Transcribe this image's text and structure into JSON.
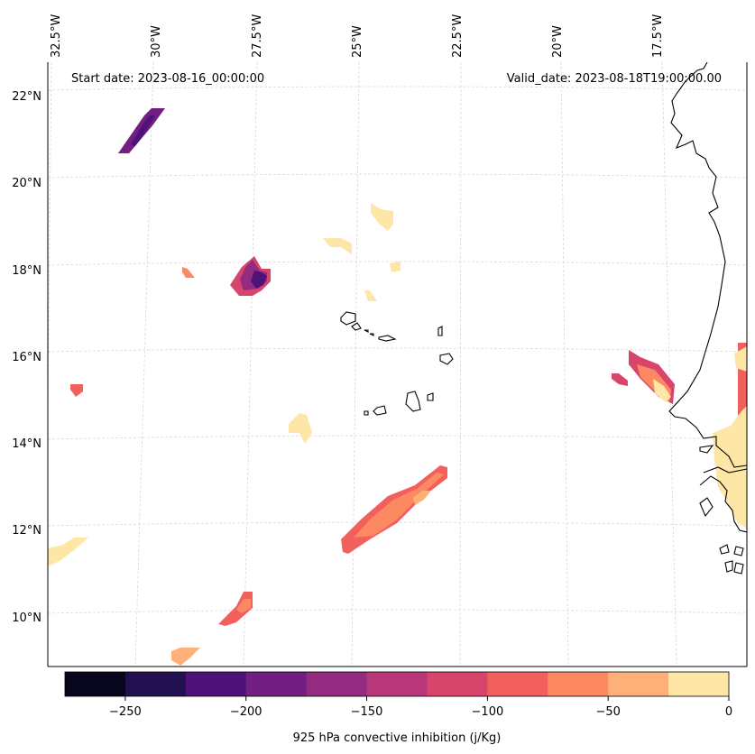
{
  "header": {
    "start_date": "Start date: 2023-08-16_00:00:00",
    "valid_date": "Valid_date: 2023-08-18T19:00:00.00"
  },
  "axes": {
    "lon_labels": [
      "32.5°W",
      "30°W",
      "27.5°W",
      "25°W",
      "22.5°W",
      "20°W",
      "17.5°W"
    ],
    "lat_labels": [
      "22°N",
      "20°N",
      "18°N",
      "16°N",
      "14°N",
      "12°N",
      "10°N"
    ]
  },
  "colorbar": {
    "label": "925 hPa convective inhibition (j/Kg)",
    "tick_labels": [
      "−250",
      "−200",
      "−150",
      "−100",
      "−50",
      "0"
    ],
    "levels": [
      -275,
      -250,
      -225,
      -200,
      -175,
      -150,
      -125,
      -100,
      -75,
      -50,
      -25,
      0
    ],
    "colors": [
      "#07061c",
      "#221150",
      "#4f127b",
      "#721f81",
      "#932b80",
      "#b73779",
      "#d8456c",
      "#f1605d",
      "#fc8961",
      "#feb078",
      "#fde6a6"
    ]
  },
  "colors": {
    "coastline": "#000000",
    "gridline": "#d9d9d9"
  }
}
